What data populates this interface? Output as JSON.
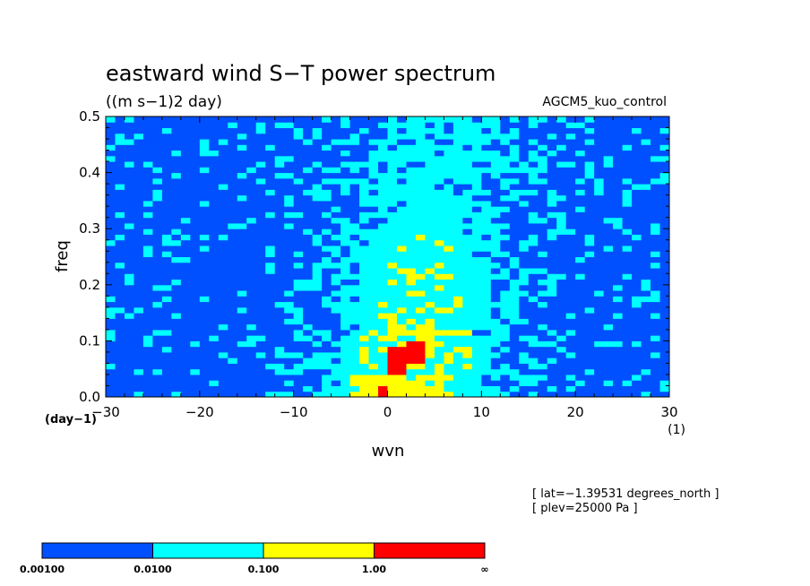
{
  "chart_data": {
    "type": "heatmap",
    "title": "eastward wind S−T power spectrum",
    "subtitle": "((m s−1)2 day)",
    "dataset_label": "AGCM5_kuo_control",
    "ylabel": "freq",
    "xlabel": "wvn",
    "x_unit": "(1)",
    "y_unit": "(day−1)",
    "xlim": [
      -30,
      30
    ],
    "ylim": [
      0,
      0.5
    ],
    "x_ticks": [
      -30,
      -20,
      -10,
      0,
      10,
      20,
      30
    ],
    "x_tick_labels": [
      "−30",
      "−20",
      "−10",
      "0",
      "10",
      "20",
      "30"
    ],
    "y_ticks": [
      0.0,
      0.1,
      0.2,
      0.3,
      0.4,
      0.5
    ],
    "y_tick_labels": [
      "0.0",
      "0.1",
      "0.2",
      "0.3",
      "0.4",
      "0.5"
    ],
    "grid": false,
    "levels": [
      0.001,
      0.01,
      0.1,
      1.0
    ],
    "colors": [
      "#ffffff",
      "#0050ff",
      "#00ffff",
      "#ffff00",
      "#ff0000"
    ],
    "colorbar": {
      "labels": [
        "0.00100",
        "0.0100",
        "0.100",
        "1.00",
        "∞"
      ],
      "colors": [
        "#0050ff",
        "#00ffff",
        "#ffff00",
        "#ff0000"
      ]
    },
    "annotations": [
      "[ lat=−1.39531 degrees_north ]",
      "[ plev=25000 Pa ]"
    ]
  }
}
